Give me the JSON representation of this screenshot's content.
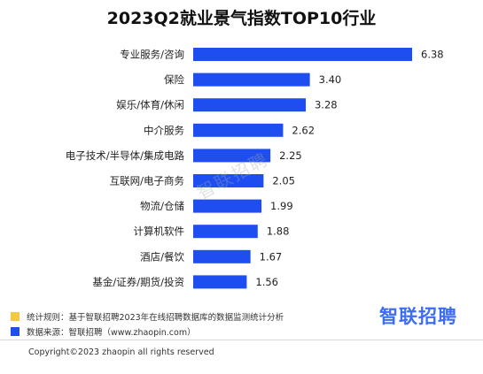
{
  "chart_data": {
    "type": "bar",
    "orientation": "horizontal",
    "title": "2023Q2就业景气指数TOP10行业",
    "categories": [
      "专业服务/咨询",
      "保险",
      "娱乐/体育/休闲",
      "中介服务",
      "电子技术/半导体/集成电路",
      "互联网/电子商务",
      "物流/仓储",
      "计算机软件",
      "酒店/餐饮",
      "基金/证券/期货/投资"
    ],
    "values": [
      6.38,
      3.4,
      3.28,
      2.62,
      2.25,
      2.05,
      1.99,
      1.88,
      1.67,
      1.56
    ],
    "value_labels": [
      "6.38",
      "3.40",
      "3.28",
      "2.62",
      "2.25",
      "2.05",
      "1.99",
      "1.88",
      "1.67",
      "1.56"
    ],
    "xlim": [
      0,
      7
    ],
    "grid": false,
    "bar_color": "#1f4ef0"
  },
  "watermark": "智联招聘",
  "notes": [
    {
      "text": "统计规则：基于智联招聘2023年在线招聘数据库的数据监测统计分析",
      "color": "#f5c842"
    },
    {
      "text": "数据来源：智联招聘（www.zhaopin.com）",
      "color": "#1f4ef0"
    }
  ],
  "logo": "智联招聘",
  "copyright": "Copyright©2023 zhaopin all rights reserved"
}
